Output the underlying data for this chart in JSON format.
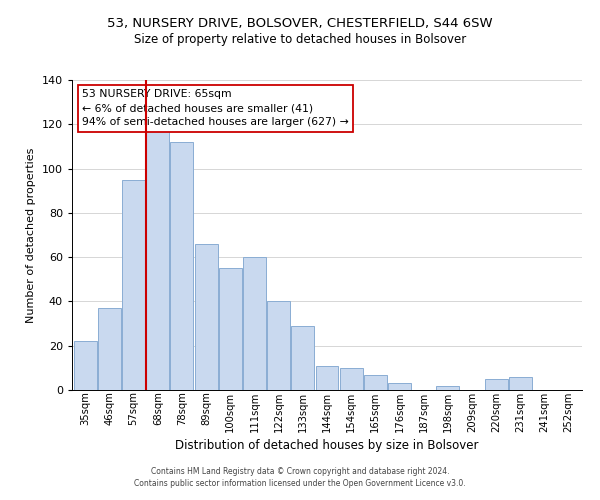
{
  "title": "53, NURSERY DRIVE, BOLSOVER, CHESTERFIELD, S44 6SW",
  "subtitle": "Size of property relative to detached houses in Bolsover",
  "xlabel": "Distribution of detached houses by size in Bolsover",
  "ylabel": "Number of detached properties",
  "bar_labels": [
    "35sqm",
    "46sqm",
    "57sqm",
    "68sqm",
    "78sqm",
    "89sqm",
    "100sqm",
    "111sqm",
    "122sqm",
    "133sqm",
    "144sqm",
    "154sqm",
    "165sqm",
    "176sqm",
    "187sqm",
    "198sqm",
    "209sqm",
    "220sqm",
    "231sqm",
    "241sqm",
    "252sqm"
  ],
  "bar_values": [
    22,
    37,
    95,
    118,
    112,
    66,
    55,
    60,
    40,
    29,
    11,
    10,
    7,
    3,
    0,
    2,
    0,
    5,
    6,
    0,
    0
  ],
  "bar_color": "#c9d9ef",
  "bar_edge_color": "#8aadd3",
  "vline_color": "#cc0000",
  "annotation_title": "53 NURSERY DRIVE: 65sqm",
  "annotation_line1": "← 6% of detached houses are smaller (41)",
  "annotation_line2": "94% of semi-detached houses are larger (627) →",
  "annotation_box_color": "#ffffff",
  "annotation_box_edge": "#cc0000",
  "ylim": [
    0,
    140
  ],
  "yticks": [
    0,
    20,
    40,
    60,
    80,
    100,
    120,
    140
  ],
  "footer1": "Contains HM Land Registry data © Crown copyright and database right 2024.",
  "footer2": "Contains public sector information licensed under the Open Government Licence v3.0."
}
